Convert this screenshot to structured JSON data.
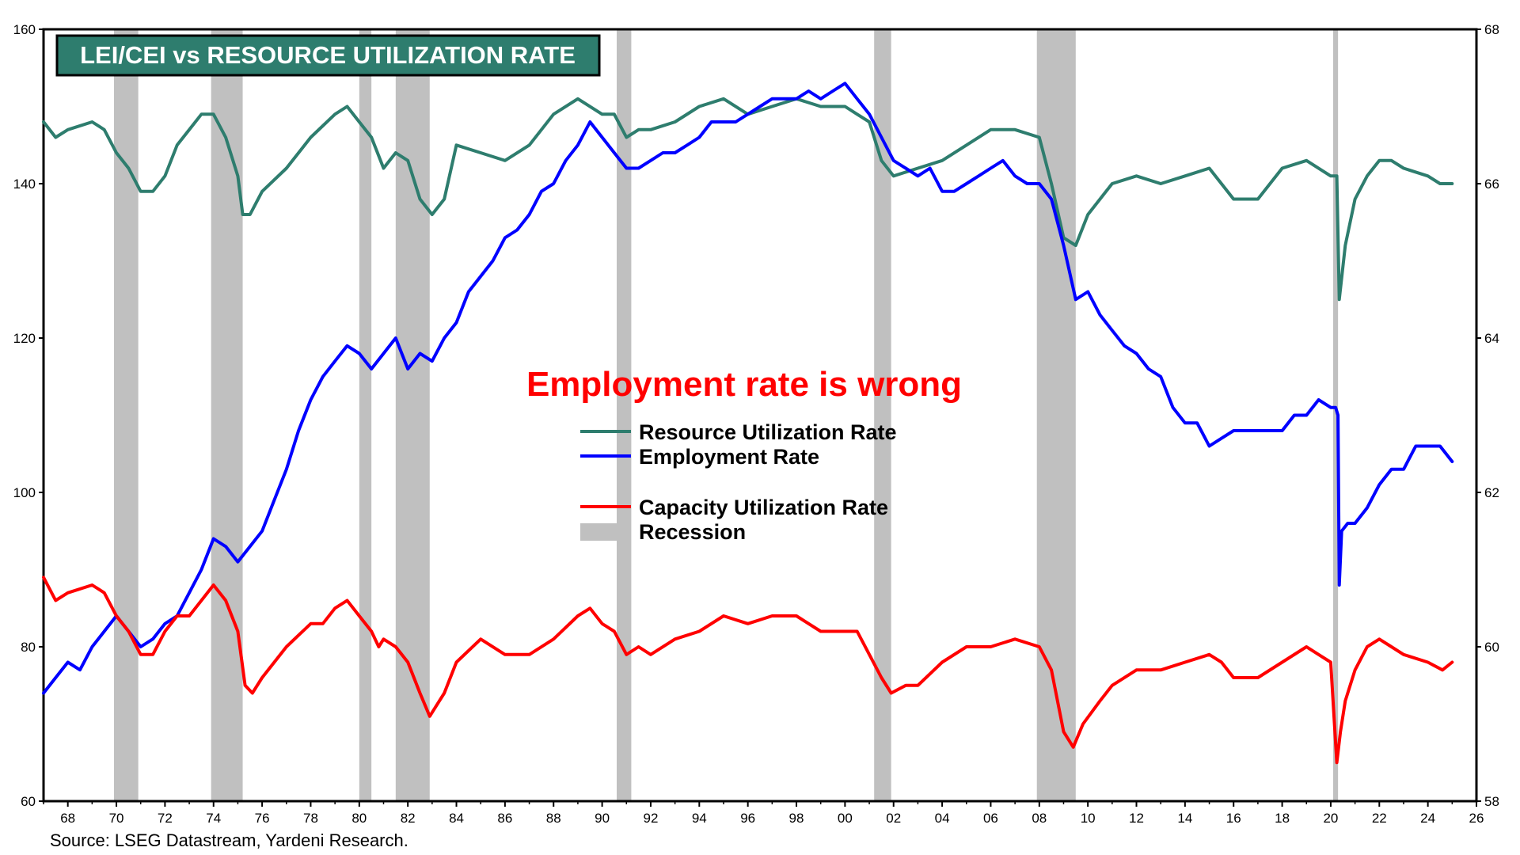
{
  "colors": {
    "resource": "#2e7d6e",
    "employment": "#0000ff",
    "capacity": "#ff0000",
    "recession": "#c0c0c0",
    "title_bg": "#2e7d6e"
  },
  "chart_data": {
    "type": "line",
    "title": "LEI/CEI vs RESOURCE UTILIZATION RATE",
    "annotation": "Employment rate is wrong",
    "source": "Source: LSEG Datastream, Yardeni Research.",
    "x_range": [
      1967,
      2026
    ],
    "x_ticks": [
      "68",
      "70",
      "72",
      "74",
      "76",
      "78",
      "80",
      "82",
      "84",
      "86",
      "88",
      "90",
      "92",
      "94",
      "96",
      "98",
      "00",
      "02",
      "04",
      "06",
      "08",
      "10",
      "12",
      "14",
      "16",
      "18",
      "20",
      "22",
      "24",
      "26"
    ],
    "y_left": {
      "range": [
        60,
        160
      ],
      "ticks": [
        "60",
        "80",
        "100",
        "120",
        "140",
        "160"
      ]
    },
    "y_right": {
      "range": [
        58,
        68
      ],
      "ticks": [
        "58",
        "60",
        "62",
        "64",
        "66",
        "68"
      ]
    },
    "legend": {
      "resource": "Resource Utilization Rate",
      "employment": "Employment Rate",
      "capacity": "Capacity Utilization Rate",
      "recession": "Recession"
    },
    "recessions": [
      [
        1969.9,
        1970.9
      ],
      [
        1973.9,
        1975.2
      ],
      [
        1980.0,
        1980.5
      ],
      [
        1981.5,
        1982.9
      ],
      [
        1990.6,
        1991.2
      ],
      [
        2001.2,
        2001.9
      ],
      [
        2007.9,
        2009.5
      ],
      [
        2020.1,
        2020.3
      ]
    ],
    "series": [
      {
        "name": "Resource Utilization Rate",
        "axis": "left",
        "x": [
          1967.0,
          1967.5,
          1968.0,
          1969.0,
          1969.5,
          1970.0,
          1970.5,
          1971.0,
          1971.5,
          1972.0,
          1972.5,
          1973.0,
          1973.5,
          1974.0,
          1974.5,
          1975.0,
          1975.2,
          1975.5,
          1976.0,
          1977.0,
          1978.0,
          1979.0,
          1979.5,
          1980.0,
          1980.5,
          1981.0,
          1981.5,
          1982.0,
          1982.5,
          1983.0,
          1983.5,
          1984.0,
          1985.0,
          1986.0,
          1987.0,
          1988.0,
          1989.0,
          1990.0,
          1990.5,
          1991.0,
          1991.5,
          1992.0,
          1993.0,
          1994.0,
          1995.0,
          1996.0,
          1997.0,
          1998.0,
          1999.0,
          2000.0,
          2000.5,
          2001.0,
          2001.5,
          2002.0,
          2003.0,
          2004.0,
          2005.0,
          2006.0,
          2007.0,
          2008.0,
          2008.5,
          2009.0,
          2009.5,
          2010.0,
          2010.5,
          2011.0,
          2012.0,
          2013.0,
          2014.0,
          2015.0,
          2016.0,
          2017.0,
          2018.0,
          2019.0,
          2020.0,
          2020.25,
          2020.35,
          2020.6,
          2021.0,
          2021.5,
          2022.0,
          2022.5,
          2023.0,
          2024.0,
          2024.5,
          2025.0
        ],
        "values": [
          148,
          146,
          147,
          148,
          147,
          144,
          142,
          139,
          139,
          141,
          145,
          147,
          149,
          149,
          146,
          141,
          136,
          136,
          139,
          142,
          146,
          149,
          150,
          148,
          146,
          142,
          144,
          143,
          138,
          136,
          138,
          145,
          144,
          143,
          145,
          149,
          151,
          149,
          149,
          146,
          147,
          147,
          148,
          150,
          151,
          149,
          150,
          151,
          150,
          150,
          149,
          148,
          143,
          141,
          142,
          143,
          145,
          147,
          147,
          146,
          140,
          133,
          132,
          136,
          138,
          140,
          141,
          140,
          141,
          142,
          138,
          138,
          142,
          143,
          141,
          141,
          125,
          132,
          138,
          141,
          143,
          143,
          142,
          141,
          140,
          140
        ]
      },
      {
        "name": "Employment Rate",
        "axis": "right",
        "x": [
          1967.0,
          1967.5,
          1968.0,
          1968.5,
          1969.0,
          1969.5,
          1970.0,
          1970.5,
          1971.0,
          1971.5,
          1972.0,
          1972.5,
          1973.0,
          1973.5,
          1974.0,
          1974.5,
          1975.0,
          1975.5,
          1976.0,
          1976.5,
          1977.0,
          1977.5,
          1978.0,
          1978.5,
          1979.0,
          1979.5,
          1980.0,
          1980.5,
          1981.0,
          1981.5,
          1982.0,
          1982.5,
          1983.0,
          1983.5,
          1984.0,
          1984.5,
          1985.0,
          1985.5,
          1986.0,
          1986.5,
          1987.0,
          1987.5,
          1988.0,
          1988.5,
          1989.0,
          1989.5,
          1990.0,
          1990.5,
          1991.0,
          1991.5,
          1992.0,
          1992.5,
          1993.0,
          1993.5,
          1994.0,
          1994.5,
          1995.0,
          1995.5,
          1996.0,
          1996.5,
          1997.0,
          1997.5,
          1998.0,
          1998.5,
          1999.0,
          1999.5,
          2000.0,
          2000.5,
          2001.0,
          2001.5,
          2002.0,
          2002.5,
          2003.0,
          2003.5,
          2004.0,
          2004.5,
          2005.0,
          2005.5,
          2006.0,
          2006.5,
          2007.0,
          2007.5,
          2008.0,
          2008.5,
          2009.0,
          2009.5,
          2010.0,
          2010.5,
          2011.0,
          2011.5,
          2012.0,
          2012.5,
          2013.0,
          2013.5,
          2014.0,
          2014.5,
          2015.0,
          2015.5,
          2016.0,
          2016.5,
          2017.0,
          2017.5,
          2018.0,
          2018.5,
          2019.0,
          2019.5,
          2020.0,
          2020.2,
          2020.3,
          2020.35,
          2020.45,
          2020.7,
          2021.0,
          2021.5,
          2022.0,
          2022.5,
          2023.0,
          2023.5,
          2024.0,
          2024.5,
          2025.0
        ],
        "values": [
          59.4,
          59.6,
          59.8,
          59.7,
          60.0,
          60.2,
          60.4,
          60.2,
          60.0,
          60.1,
          60.3,
          60.4,
          60.7,
          61.0,
          61.4,
          61.3,
          61.1,
          61.3,
          61.5,
          61.9,
          62.3,
          62.8,
          63.2,
          63.5,
          63.7,
          63.9,
          63.8,
          63.6,
          63.8,
          64.0,
          63.6,
          63.8,
          63.7,
          64.0,
          64.2,
          64.6,
          64.8,
          65.0,
          65.3,
          65.4,
          65.6,
          65.9,
          66.0,
          66.3,
          66.5,
          66.8,
          66.6,
          66.4,
          66.2,
          66.2,
          66.3,
          66.4,
          66.4,
          66.5,
          66.6,
          66.8,
          66.8,
          66.8,
          66.9,
          67.0,
          67.1,
          67.1,
          67.1,
          67.2,
          67.1,
          67.2,
          67.3,
          67.1,
          66.9,
          66.6,
          66.3,
          66.2,
          66.1,
          66.2,
          65.9,
          65.9,
          66.0,
          66.1,
          66.2,
          66.3,
          66.1,
          66.0,
          66.0,
          65.8,
          65.2,
          64.5,
          64.6,
          64.3,
          64.1,
          63.9,
          63.8,
          63.6,
          63.5,
          63.1,
          62.9,
          62.9,
          62.6,
          62.7,
          62.8,
          62.8,
          62.8,
          62.8,
          62.8,
          63.0,
          63.0,
          63.2,
          63.1,
          63.1,
          63.0,
          60.8,
          61.5,
          61.6,
          61.6,
          61.8,
          62.1,
          62.3,
          62.3,
          62.6,
          62.6,
          62.6,
          62.4
        ]
      },
      {
        "name": "Capacity Utilization Rate",
        "axis": "left",
        "x": [
          1967.0,
          1967.5,
          1968.0,
          1969.0,
          1969.5,
          1970.0,
          1970.5,
          1971.0,
          1971.5,
          1972.0,
          1972.5,
          1973.0,
          1973.5,
          1974.0,
          1974.5,
          1975.0,
          1975.3,
          1975.6,
          1976.0,
          1977.0,
          1978.0,
          1978.5,
          1979.0,
          1979.5,
          1980.0,
          1980.5,
          1980.8,
          1981.0,
          1981.5,
          1982.0,
          1982.5,
          1982.9,
          1983.5,
          1984.0,
          1985.0,
          1986.0,
          1987.0,
          1988.0,
          1989.0,
          1989.5,
          1990.0,
          1990.5,
          1991.0,
          1991.5,
          1992.0,
          1993.0,
          1994.0,
          1995.0,
          1996.0,
          1997.0,
          1998.0,
          1999.0,
          2000.0,
          2000.5,
          2001.0,
          2001.5,
          2001.9,
          2002.5,
          2003.0,
          2004.0,
          2005.0,
          2006.0,
          2007.0,
          2008.0,
          2008.5,
          2009.0,
          2009.4,
          2009.8,
          2010.5,
          2011.0,
          2012.0,
          2013.0,
          2014.0,
          2015.0,
          2015.5,
          2016.0,
          2017.0,
          2018.0,
          2019.0,
          2019.5,
          2020.0,
          2020.25,
          2020.4,
          2020.6,
          2021.0,
          2021.5,
          2022.0,
          2022.5,
          2023.0,
          2024.0,
          2024.6,
          2025.0
        ],
        "values": [
          89,
          86,
          87,
          88,
          87,
          84,
          82,
          79,
          79,
          82,
          84,
          84,
          86,
          88,
          86,
          82,
          75,
          74,
          76,
          80,
          83,
          83,
          85,
          86,
          84,
          82,
          80,
          81,
          80,
          78,
          74,
          71,
          74,
          78,
          81,
          79,
          79,
          81,
          84,
          85,
          83,
          82,
          79,
          80,
          79,
          81,
          82,
          84,
          83,
          84,
          84,
          82,
          82,
          82,
          79,
          76,
          74,
          75,
          75,
          78,
          80,
          80,
          81,
          80,
          77,
          69,
          67,
          70,
          73,
          75,
          77,
          77,
          78,
          79,
          78,
          76,
          76,
          78,
          80,
          79,
          78,
          65,
          69,
          73,
          77,
          80,
          81,
          80,
          79,
          78,
          77,
          78
        ]
      }
    ]
  }
}
